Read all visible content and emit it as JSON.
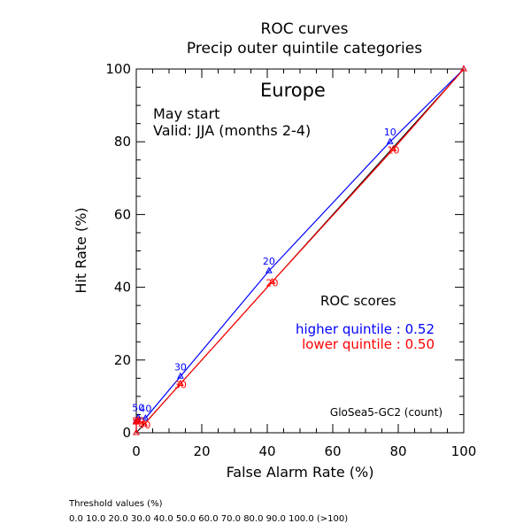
{
  "chart_data": {
    "type": "line",
    "title": "ROC curves",
    "subtitle": "Precip outer quintile categories",
    "region": "Europe",
    "start": "May start",
    "valid": "Valid: JJA (months 2-4)",
    "xlabel": "False Alarm Rate (%)",
    "ylabel": "Hit Rate (%)",
    "xlim": [
      0,
      100
    ],
    "ylim": [
      0,
      100
    ],
    "xticks": [
      "0",
      "20",
      "40",
      "60",
      "80",
      "100"
    ],
    "yticks": [
      "0",
      "20",
      "40",
      "60",
      "80",
      "100"
    ],
    "grid": false,
    "diagonal": true,
    "scores_title": "ROC scores",
    "model": "GloSea5-GC2 (count)",
    "series": [
      {
        "name": "higher quintile",
        "score_label": "higher quintile : 0.52",
        "color": "#0000ff",
        "x": [
          0,
          0,
          0,
          0,
          0.2,
          0.6,
          2.8,
          13.5,
          40.5,
          77.5,
          100
        ],
        "y": [
          0,
          3.0,
          3.1,
          3.3,
          3.4,
          4.2,
          4.0,
          15.5,
          44.5,
          80.0,
          100
        ],
        "point_labels": [
          "",
          "",
          "",
          "",
          "",
          "50",
          "40",
          "30",
          "20",
          "10",
          ""
        ]
      },
      {
        "name": "lower quintile",
        "score_label": "lower quintile : 0.50",
        "color": "#ff0000",
        "x": [
          0,
          0,
          0,
          0,
          0.2,
          0.6,
          2.5,
          13.5,
          41.5,
          78.5,
          100
        ],
        "y": [
          0,
          2.9,
          3.0,
          3.1,
          3.2,
          3.5,
          2.4,
          13.5,
          41.5,
          78.0,
          100
        ],
        "point_labels": [
          "",
          "",
          "",
          "",
          "",
          "50",
          "40",
          "30",
          "20",
          "10",
          ""
        ]
      }
    ]
  },
  "footer": {
    "threshold_title": "Threshold values (%)",
    "threshold_values": "0.0 10.0 20.0 30.0 40.0 50.0 60.0 70.0 80.0 90.0 100.0 (>100)"
  }
}
